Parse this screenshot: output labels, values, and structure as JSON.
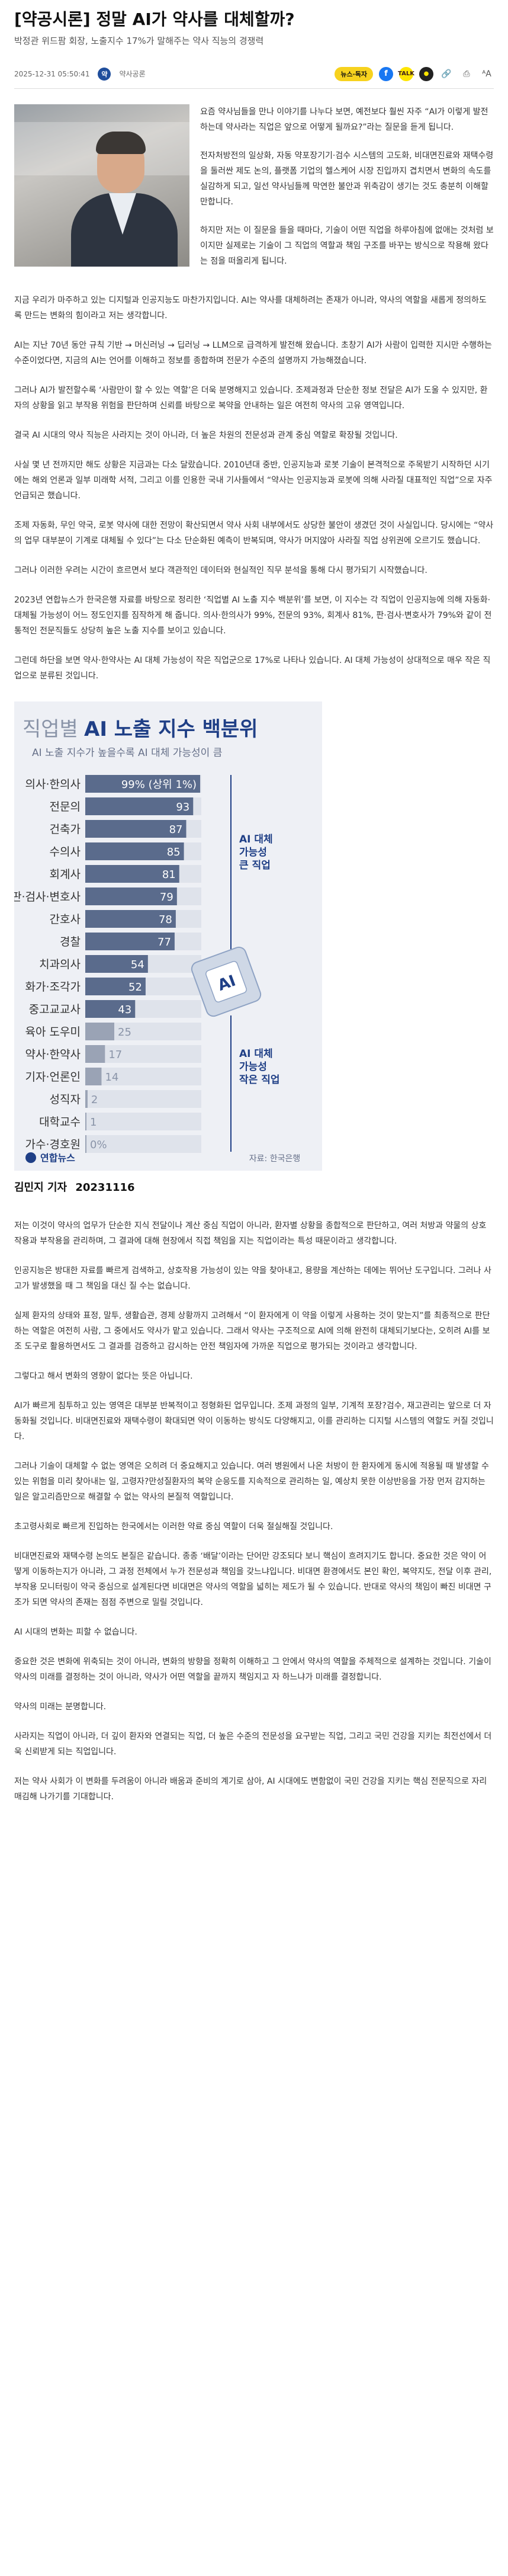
{
  "article": {
    "title": "[약공시론] 정말 AI가 약사를 대체할까?",
    "subtitle": "박정관 위드팜 회장, 노출지수 17%가 말해주는 약사 직능의 경쟁력",
    "date": "2025-12-31 05:50:41",
    "publisher": "약사공론",
    "publisher_logo": "약",
    "share_label": "뉴스·독자",
    "icons": [
      "facebook-icon",
      "kakaotalk-icon",
      "kakaostory-icon",
      "link-icon",
      "print-icon",
      "font-size-icon"
    ]
  },
  "intro_paragraphs": [
    "요즘 약사님들을 만나 이야기를 나누다 보면, 예전보다 훨씬 자주 “AI가 이렇게 발전하는데 약사라는 직업은 앞으로 어떻게 될까요?”라는 질문을 듣게 됩니다.",
    "전자처방전의 일상화, 자동 약포장기기·검수 시스템의 고도화, 비대면진료와 재택수령을 둘러싼 제도 논의, 플랫폼 기업의 헬스케어 시장 진입까지 겹치면서 변화의 속도를 실감하게 되고, 일선 약사님들께 막연한 불안과 위축감이 생기는 것도 충분히 이해할 만합니다.",
    "하지만 저는 이 질문을 들을 때마다, 기술이 어떤 직업을 하루아침에 없애는 것처럼 보이지만 실제로는 기술이 그 직업의 역할과 책임 구조를 바꾸는 방식으로 작용해 왔다는 점을 떠올리게 됩니다."
  ],
  "paragraphs_1": [
    "지금 우리가 마주하고 있는 디지털과 인공지능도 마찬가지입니다. AI는 약사를 대체하려는 존재가 아니라, 약사의 역할을 새롭게 정의하도록 만드는 변화의 힘이라고 저는 생각합니다.",
    "AI는 지난 70년 동안 규칙 기반 → 머신러닝 → 딥러닝 → LLM으로 급격하게 발전해 왔습니다. 초창기 AI가 사람이 입력한 지시만 수행하는 수준이었다면, 지금의 AI는 언어를 이해하고 정보를 종합하며 전문가 수준의 설명까지 가능해졌습니다.",
    "그러나 AI가 발전할수록 ‘사람만이 할 수 있는 역할’은 더욱 분명해지고 있습니다. 조제과정과 단순한 정보 전달은 AI가 도울 수 있지만, 환자의 상황을 읽고 부작용 위험을 판단하며 신뢰를 바탕으로 복약을 안내하는 일은 여전히 약사의 고유 영역입니다.",
    "결국 AI 시대의 약사 직능은 사라지는 것이 아니라, 더 높은 차원의 전문성과 관계 중심 역할로 확장될 것입니다.",
    "사실 몇 년 전까지만 해도 상황은 지금과는 다소 달랐습니다. 2010년대 중반, 인공지능과 로봇 기술이 본격적으로 주목받기 시작하던 시기에는 해외 언론과 일부 미래학 서적, 그리고 이를 인용한 국내 기사들에서 “약사는 인공지능과 로봇에 의해 사라질 대표적인 직업”으로 자주 언급되곤 했습니다.",
    "조제 자동화, 무인 약국, 로봇 약사에 대한 전망이 확산되면서 약사 사회 내부에서도 상당한 불안이 생겼던 것이 사실입니다. 당시에는 “약사의 업무 대부분이 기계로 대체될 수 있다”는 다소 단순화된 예측이 반복되며, 약사가 머지않아 사라질 직업 상위권에 오르기도 했습니다.",
    "그러나 이러한 우려는 시간이 흐르면서 보다 객관적인 데이터와 현실적인 직무 분석을 통해 다시 평가되기 시작했습니다.",
    "2023년 연합뉴스가 한국은행 자료를 바탕으로 정리한 ‘직업별 AI 노출 지수 백분위’를 보면, 이 지수는 각 직업이 인공지능에 의해 자동화·대체될 가능성이 어느 정도인지를 짐작하게 해 줍니다. 의사·한의사가 99%, 전문의 93%, 회계사 81%, 판·검사·변호사가 79%와 같이 전통적인 전문직들도 상당히 높은 노출 지수를 보이고 있습니다.",
    "그런데 하단을 보면 약사·한약사는 AI 대체 가능성이 작은 직업군으로 17%로 나타나 있습니다. AI 대체 가능성이 상대적으로 매우 작은 직업으로 분류된 것입니다."
  ],
  "chart_data": {
    "type": "bar",
    "title_prefix": "직업별",
    "title_main": "AI 노출 지수 백분위",
    "subtitle": "AI 노출 지수가 높을수록 AI 대체 가능성이 큼",
    "categories": [
      "의사·한의사",
      "전문의",
      "건축가",
      "수의사",
      "회계사",
      "판·검사·변호사",
      "간호사",
      "경찰",
      "치과의사",
      "화가·조각가",
      "중고교교사",
      "육아 도우미",
      "약사·한약사",
      "기자·언론인",
      "성직자",
      "대학교수",
      "가수·경호원"
    ],
    "values": [
      99,
      93,
      87,
      85,
      81,
      79,
      78,
      77,
      54,
      52,
      43,
      25,
      17,
      14,
      2,
      1,
      0
    ],
    "value_labels": [
      "99% (상위 1%)",
      "93",
      "87",
      "85",
      "81",
      "79",
      "78",
      "77",
      "54",
      "52",
      "43",
      "25",
      "17",
      "14",
      "2",
      "1",
      "0%"
    ],
    "xlim": [
      0,
      100
    ],
    "annotation_high": [
      "AI 대체",
      "가능성",
      "큰 직업"
    ],
    "annotation_low": [
      "AI 대체",
      "가능성",
      "작은 직업"
    ],
    "chip_label": "AI",
    "source": "자료: 한국은행",
    "logo_text": "연합뉴스",
    "bar_color": "#5a6b8c",
    "bar_low_color": "#9aa3b5",
    "accent": "#1f3f86"
  },
  "figure_credit": {
    "author": "김민지 기자",
    "date": "20231116"
  },
  "paragraphs_2": [
    "저는 이것이 약사의 업무가 단순한 지식 전달이나 계산 중심 직업이 아니라, 환자별 상황을 종합적으로 판단하고, 여러 처방과 약물의 상호작용과 부작용을 관리하며, 그 결과에 대해 현장에서 직접 책임을 지는 직업이라는 특성 때문이라고 생각합니다.",
    "인공지능은 방대한 자료를 빠르게 검색하고, 상호작용 가능성이 있는 약을 찾아내고, 용량을 계산하는 데에는 뛰어난 도구입니다. 그러나 사고가 발생했을 때 그 책임을 대신 질 수는 없습니다.",
    "실제 환자의 상태와 표정, 말투, 생활습관, 경제 상황까지 고려해서 “이 환자에게 이 약을 이렇게 사용하는 것이 맞는지”를 최종적으로 판단하는 역할은 여전히 사람, 그 중에서도 약사가 맡고 있습니다. 그래서 약사는 구조적으로 AI에 의해 완전히 대체되기보다는, 오히려 AI를 보조 도구로 활용하면서도 그 결과를 검증하고 감시하는 안전 책임자에 가까운 직업으로 평가되는 것이라고 생각합니다.",
    "그렇다고 해서 변화의 영향이 없다는 뜻은 아닙니다.",
    "AI가 빠르게 침투하고 있는 영역은 대부분 반복적이고 정형화된 업무입니다. 조제 과정의 일부, 기계적 포장?검수, 재고관리는 앞으로 더 자동화될 것입니다. 비대면진료와 재택수령이 확대되면 약이 이동하는 방식도 다양해지고, 이를 관리하는 디지털 시스템의 역할도 커질 것입니다.",
    "그러나 기술이 대체할 수 없는 영역은 오히려 더 중요해지고 있습니다. 여러 병원에서 나온 처방이 한 환자에게 동시에 적용될 때 발생할 수 있는 위험을 미리 찾아내는 일, 고령자?만성질환자의 복약 순응도를 지속적으로 관리하는 일, 예상치 못한 이상반응을 가장 먼저 감지하는 일은 알고리즘만으로 해결할 수 없는 약사의 본질적 역할입니다.",
    "초고령사회로 빠르게 진입하는 한국에서는 이러한 약료 중심 역할이 더욱 절실해질 것입니다.",
    "비대면진료와 재택수령 논의도 본질은 같습니다. 종종 ‘배달’이라는 단어만 강조되다 보니 핵심이 흐려지기도 합니다. 중요한 것은 약이 어떻게 이동하는지가 아니라, 그 과정 전체에서 누가 전문성과 책임을 갖느냐입니다. 비대면 환경에서도 본인 확인, 복약지도, 전달 이후 관리, 부작용 모니터링이 약국 중심으로 설계된다면 비대면은 약사의 역할을 넓히는 제도가 될 수 있습니다. 반대로 약사의 책임이 빠진 비대면 구조가 되면 약사의 존재는 점점 주변으로 밀릴 것입니다.",
    "AI 시대의 변화는 피할 수 없습니다.",
    "중요한 것은 변화에 위축되는 것이 아니라, 변화의 방향을 정확히 이해하고 그 안에서 약사의 역할을 주체적으로 설계하는 것입니다. 기술이 약사의 미래를 결정하는 것이 아니라, 약사가 어떤 역할을 끝까지 책임지고 자 하느냐가 미래를 결정합니다.",
    "약사의 미래는 분명합니다.",
    "사라지는 직업이 아니라, 더 깊이 환자와 연결되는 직업, 더 높은 수준의 전문성을 요구받는 직업, 그리고 국민 건강을 지키는 최전선에서 더욱 신뢰받게 되는 직업입니다.",
    "저는 약사 사회가 이 변화를 두려움이 아니라 배움과 준비의 계기로 삼아, AI 시대에도 변함없이 국민 건강을 지키는 핵심 전문직으로 자리매김해 나가기를 기대합니다."
  ]
}
